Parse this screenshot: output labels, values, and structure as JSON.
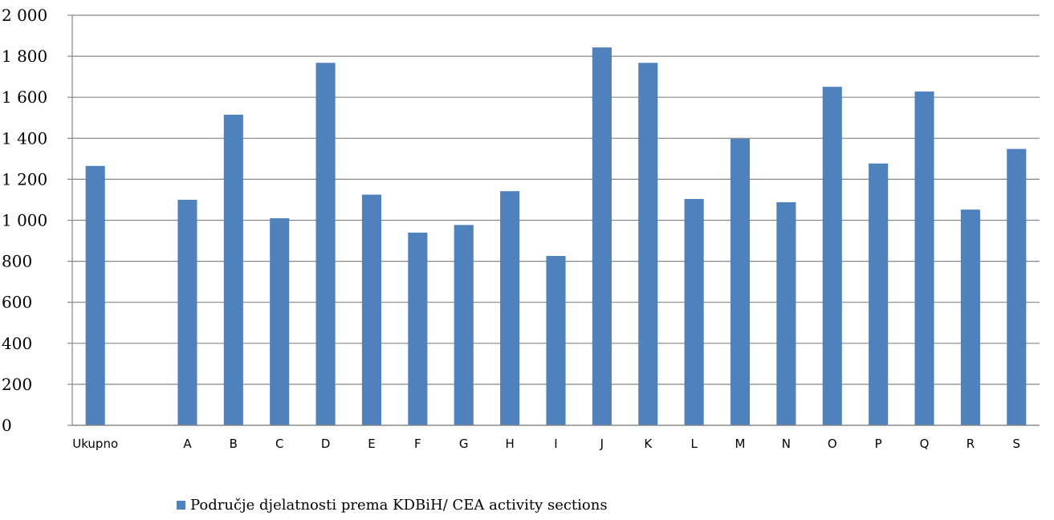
{
  "chart_data": {
    "type": "bar",
    "categories": [
      "Ukupno",
      "",
      "A",
      "B",
      "C",
      "D",
      "E",
      "F",
      "G",
      "H",
      "I",
      "J",
      "K",
      "L",
      "M",
      "N",
      "O",
      "P",
      "Q",
      "R",
      "S"
    ],
    "series": [
      {
        "name": "Područje djelatnosti prema KDBiH/ CEA activity sections",
        "values": [
          1265,
          null,
          1100,
          1515,
          1010,
          1768,
          1125,
          940,
          977,
          1142,
          826,
          1843,
          1768,
          1104,
          1398,
          1088,
          1651,
          1277,
          1628,
          1052,
          1348
        ],
        "color": "#4f81bd"
      }
    ],
    "ylim": [
      0,
      2000
    ],
    "yticks": [
      0,
      200,
      400,
      600,
      800,
      1000,
      1200,
      1400,
      1600,
      1800,
      2000
    ],
    "ytick_labels": [
      "0",
      "200",
      "400",
      "600",
      "800",
      "1 000",
      "1 200",
      "1 400",
      "1 600",
      "1 800",
      "2 000"
    ],
    "grid": true,
    "legend_position": "bottom",
    "gridline_color": "#868686"
  }
}
